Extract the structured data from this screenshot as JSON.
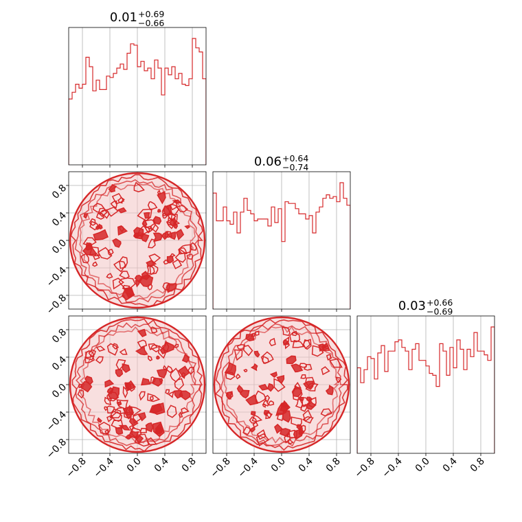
{
  "figure": {
    "type": "corner-plot",
    "parameters": 3
  },
  "colors": {
    "accent": "#d62728",
    "fill_light": "#f2c4c5",
    "fill_mid": "#e98a8c",
    "grid": "#b0b0b0",
    "axes": "#000000"
  },
  "axis_ticks": {
    "values": [
      -0.8,
      -0.4,
      0.0,
      0.4,
      0.8
    ],
    "labels": [
      "−0.8",
      "−0.4",
      "0.0",
      "0.4",
      "0.8"
    ],
    "range": [
      -1,
      1
    ]
  },
  "titles": [
    {
      "median": "0.01",
      "plus": "+0.69",
      "minus": "−0.66"
    },
    {
      "median": "0.06",
      "plus": "+0.64",
      "minus": "−0.74"
    },
    {
      "median": "0.03",
      "plus": "+0.66",
      "minus": "−0.69"
    }
  ],
  "chart_data": [
    {
      "type": "histogram",
      "parameter": 1,
      "xlim": [
        -1,
        1
      ],
      "bins": 40,
      "values": [
        49,
        54,
        60,
        57,
        60,
        80,
        73,
        55,
        63,
        56,
        56,
        66,
        65,
        68,
        72,
        75,
        71,
        83,
        90,
        89,
        73,
        77,
        70,
        72,
        64,
        78,
        72,
        52,
        72,
        67,
        73,
        64,
        68,
        60,
        59,
        64,
        94,
        87,
        84,
        64
      ]
    },
    {
      "type": "histogram",
      "parameter": 2,
      "xlim": [
        -1,
        1
      ],
      "bins": 40,
      "values": [
        67,
        51,
        51,
        59,
        51,
        49,
        56,
        44,
        56,
        64,
        57,
        55,
        51,
        52,
        52,
        52,
        48,
        59,
        50,
        58,
        39,
        62,
        61,
        61,
        58,
        55,
        55,
        52,
        54,
        44,
        56,
        59,
        64,
        66,
        64,
        65,
        62,
        73,
        64,
        60
      ]
    },
    {
      "type": "histogram",
      "parameter": 3,
      "xlim": [
        -1,
        1
      ],
      "bins": 40,
      "values": [
        46,
        38,
        45,
        52,
        51,
        40,
        54,
        58,
        44,
        55,
        55,
        60,
        61,
        57,
        55,
        45,
        56,
        59,
        50,
        50,
        47,
        43,
        42,
        36,
        59,
        55,
        42,
        57,
        46,
        61,
        56,
        45,
        56,
        52,
        65,
        55,
        55,
        53,
        50,
        68
      ]
    },
    {
      "type": "contour",
      "x_parameter": 1,
      "y_parameter": 2,
      "xlim": [
        -1,
        1
      ],
      "ylim": [
        -1,
        1
      ],
      "support": "unit disk",
      "levels": 3
    },
    {
      "type": "contour",
      "x_parameter": 1,
      "y_parameter": 3,
      "xlim": [
        -1,
        1
      ],
      "ylim": [
        -1,
        1
      ],
      "support": "unit disk",
      "levels": 3
    },
    {
      "type": "contour",
      "x_parameter": 2,
      "y_parameter": 3,
      "xlim": [
        -1,
        1
      ],
      "ylim": [
        -1,
        1
      ],
      "support": "unit disk",
      "levels": 3
    }
  ]
}
